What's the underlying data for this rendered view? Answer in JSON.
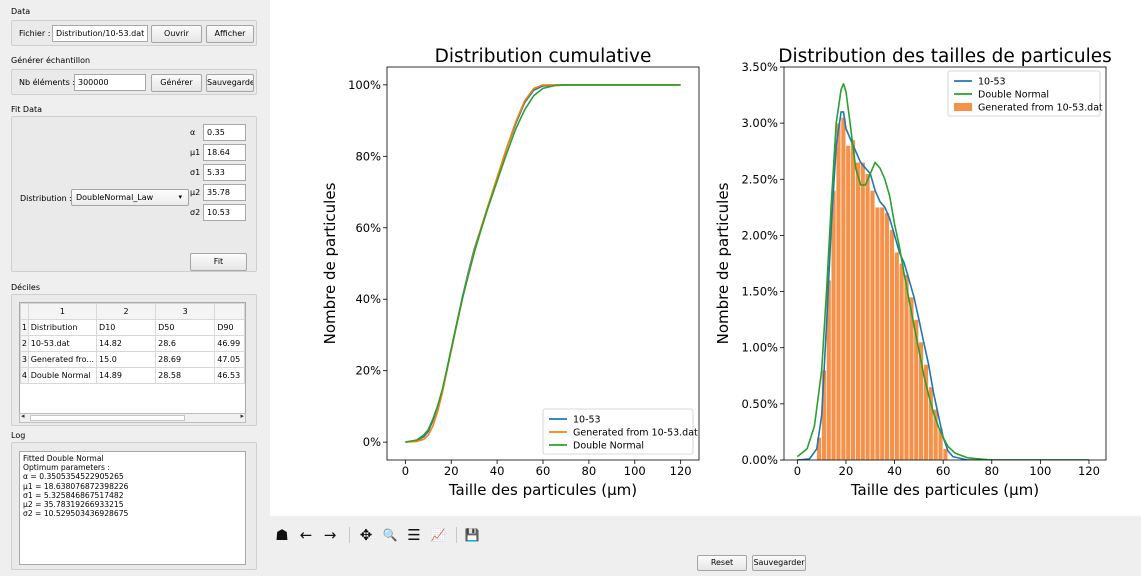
{
  "data_section": {
    "title": "Data",
    "file_label": "Fichier :",
    "file_value": "Distribution/10-53.dat",
    "open_button": "Ouvrir",
    "show_button": "Afficher"
  },
  "sample_section": {
    "title": "Générer échantillon",
    "count_label": "Nb éléments :",
    "count_value": "300000",
    "generate_button": "Générer",
    "save_button": "Sauvegarder"
  },
  "fit_section": {
    "title": "Fit Data",
    "distribution_label": "Distribution :",
    "distribution_value": "DoubleNormal_Law",
    "params": [
      {
        "label": "α",
        "value": "0.35"
      },
      {
        "label": "μ1",
        "value": "18.64"
      },
      {
        "label": "σ1",
        "value": "5.33"
      },
      {
        "label": "μ2",
        "value": "35.78"
      },
      {
        "label": "σ2",
        "value": "10.53"
      }
    ],
    "fit_button": "Fit"
  },
  "deciles_section": {
    "title": "Déciles",
    "col_headers": [
      "1",
      "2",
      "3",
      ""
    ],
    "rows": [
      {
        "num": "1",
        "cells": [
          "Distribution",
          "D10",
          "D50",
          "D90"
        ]
      },
      {
        "num": "2",
        "cells": [
          "10-53.dat",
          "14.82",
          "28.6",
          "46.99"
        ]
      },
      {
        "num": "3",
        "cells": [
          "Generated fro...",
          "15.0",
          "28.69",
          "47.05"
        ]
      },
      {
        "num": "4",
        "cells": [
          "Double Normal",
          "14.89",
          "28.58",
          "46.53"
        ]
      }
    ]
  },
  "log_section": {
    "title": "Log",
    "lines": [
      "Fitted Double Normal",
      "Optimum parameters :",
      "α = 0.3505354522905265",
      "μ1 = 18.638076872398226",
      "σ1 = 5.325846867517482",
      "μ2 = 35.78319266933215",
      "σ2 = 10.529503436928675"
    ]
  },
  "chart_data": [
    {
      "type": "line",
      "title": "Distribution cumulative",
      "xlabel": "Taille des particules (µm)",
      "ylabel": "Nombre de particules",
      "xlim": [
        -8,
        128
      ],
      "ylim": [
        -0.05,
        1.05
      ],
      "xticks": [
        0,
        20,
        40,
        60,
        80,
        100,
        120
      ],
      "xtick_labels": [
        "0",
        "20",
        "40",
        "60",
        "80",
        "100",
        "120"
      ],
      "yticks": [
        0,
        0.2,
        0.4,
        0.6,
        0.8,
        1.0
      ],
      "ytick_labels": [
        "0%",
        "20%",
        "40%",
        "60%",
        "80%",
        "100%"
      ],
      "legend_position": "bottom-right",
      "series": [
        {
          "name": "10-53",
          "color": "#1f77b4",
          "x": [
            0,
            5,
            8,
            10,
            12,
            14,
            16,
            18,
            20,
            22,
            25,
            28,
            30,
            33,
            36,
            40,
            44,
            48,
            52,
            56,
            60,
            65,
            70,
            80,
            100,
            120
          ],
          "y": [
            0,
            0.005,
            0.015,
            0.03,
            0.06,
            0.1,
            0.14,
            0.2,
            0.26,
            0.32,
            0.41,
            0.49,
            0.54,
            0.6,
            0.66,
            0.74,
            0.82,
            0.89,
            0.95,
            0.985,
            0.997,
            0.999,
            1.0,
            1.0,
            1.0,
            1.0
          ]
        },
        {
          "name": "Generated from 10-53.dat",
          "color": "#ff7f0e",
          "x": [
            0,
            5,
            8,
            10,
            12,
            14,
            16,
            18,
            20,
            22,
            25,
            28,
            30,
            33,
            36,
            40,
            44,
            48,
            52,
            56,
            60,
            65,
            70,
            80,
            100,
            120
          ],
          "y": [
            0,
            0.002,
            0.008,
            0.02,
            0.045,
            0.085,
            0.135,
            0.195,
            0.255,
            0.315,
            0.405,
            0.485,
            0.535,
            0.6,
            0.66,
            0.74,
            0.82,
            0.895,
            0.955,
            0.99,
            1.0,
            1.0,
            1.0,
            1.0,
            1.0,
            1.0
          ]
        },
        {
          "name": "Double Normal",
          "color": "#2ca02c",
          "x": [
            0,
            5,
            8,
            10,
            12,
            14,
            16,
            18,
            20,
            22,
            25,
            28,
            30,
            33,
            36,
            40,
            44,
            48,
            52,
            56,
            60,
            65,
            70,
            80,
            100,
            120
          ],
          "y": [
            0,
            0.006,
            0.02,
            0.035,
            0.065,
            0.1,
            0.145,
            0.2,
            0.26,
            0.32,
            0.405,
            0.48,
            0.53,
            0.595,
            0.655,
            0.73,
            0.805,
            0.875,
            0.93,
            0.97,
            0.99,
            0.998,
            1.0,
            1.0,
            1.0,
            1.0
          ]
        }
      ]
    },
    {
      "type": "bar",
      "title": "Distribution des tailles de particules",
      "xlabel": "Taille des particules (µm)",
      "ylabel": "Nombre de particules",
      "xlim": [
        -5.5,
        127
      ],
      "ylim": [
        0,
        0.035
      ],
      "xticks": [
        0,
        20,
        40,
        60,
        80,
        100,
        120
      ],
      "xtick_labels": [
        "0",
        "20",
        "40",
        "60",
        "80",
        "100",
        "120"
      ],
      "yticks": [
        0,
        0.005,
        0.01,
        0.015,
        0.02,
        0.025,
        0.03,
        0.035
      ],
      "ytick_labels": [
        "0.00%",
        "0.50%",
        "1.00%",
        "1.50%",
        "2.00%",
        "2.50%",
        "3.00%",
        "3.50%"
      ],
      "legend_position": "top-right",
      "bars": {
        "name": "Generated from 10-53.dat",
        "color": "#f6914a",
        "x": [
          9,
          11,
          13,
          15,
          17,
          19,
          21,
          23,
          25,
          27,
          29,
          31,
          33,
          35,
          37,
          39,
          41,
          43,
          45,
          47,
          49,
          51,
          53,
          55,
          57,
          59,
          61
        ],
        "values": [
          0.002,
          0.008,
          0.016,
          0.024,
          0.03,
          0.0305,
          0.028,
          0.0285,
          0.0265,
          0.0265,
          0.0255,
          0.024,
          0.0225,
          0.0225,
          0.022,
          0.0205,
          0.0185,
          0.0175,
          0.0165,
          0.0145,
          0.0125,
          0.0105,
          0.0085,
          0.0065,
          0.0045,
          0.0028,
          0.001
        ]
      },
      "series": [
        {
          "name": "10-53",
          "color": "#1f77b4",
          "x": [
            0,
            5,
            8,
            10,
            12,
            14,
            16,
            18,
            19,
            20,
            22,
            24,
            26,
            28,
            30,
            32,
            34,
            36,
            38,
            40,
            42,
            44,
            46,
            48,
            50,
            52,
            54,
            56,
            58,
            60,
            62,
            64,
            70,
            80,
            90,
            100,
            110,
            120
          ],
          "y": [
            0,
            0.0001,
            0.001,
            0.004,
            0.012,
            0.021,
            0.028,
            0.031,
            0.031,
            0.0295,
            0.0285,
            0.0275,
            0.0265,
            0.026,
            0.0255,
            0.024,
            0.023,
            0.0225,
            0.0215,
            0.02,
            0.0185,
            0.0175,
            0.016,
            0.0145,
            0.0125,
            0.0105,
            0.0085,
            0.006,
            0.004,
            0.002,
            0.0008,
            0.0003,
            0,
            0,
            0,
            0,
            0,
            0
          ]
        },
        {
          "name": "Double Normal",
          "color": "#2ca02c",
          "x": [
            0,
            4,
            7,
            10,
            12,
            14,
            16,
            18,
            19,
            20,
            22,
            24,
            26,
            28,
            30,
            32,
            34,
            36,
            38,
            40,
            42,
            44,
            46,
            48,
            50,
            52,
            54,
            56,
            58,
            60,
            62,
            65,
            70,
            80,
            100,
            120
          ],
          "y": [
            0.0003,
            0.001,
            0.003,
            0.008,
            0.015,
            0.023,
            0.03,
            0.033,
            0.0335,
            0.0328,
            0.0295,
            0.026,
            0.0245,
            0.0245,
            0.0255,
            0.0265,
            0.026,
            0.025,
            0.0235,
            0.021,
            0.019,
            0.0165,
            0.0142,
            0.012,
            0.0098,
            0.0076,
            0.0058,
            0.0042,
            0.003,
            0.002,
            0.0012,
            0.0006,
            0.0002,
            0,
            0,
            0
          ]
        }
      ]
    }
  ],
  "toolbar": {
    "icons": [
      "home-icon",
      "back-arrow-icon",
      "forward-arrow-icon",
      "pan-icon",
      "zoom-icon",
      "subplots-icon",
      "axes-edit-icon",
      "save-icon"
    ],
    "glyphs": [
      "☗",
      "←",
      "→",
      "✥",
      "🔍",
      "☰",
      "📈",
      "💾"
    ],
    "reset_button": "Reset",
    "save_button": "Sauvegarder"
  }
}
